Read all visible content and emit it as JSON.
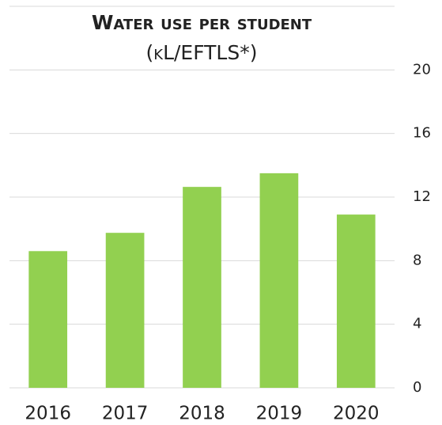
{
  "chart_data": {
    "type": "bar",
    "title": "Water use per student",
    "subtitle": "(kL/EFTLS*)",
    "categories": [
      "2016",
      "2017",
      "2018",
      "2019",
      "2020"
    ],
    "values": [
      8.6,
      9.75,
      12.64,
      13.5,
      10.9
    ],
    "color": "#92d050",
    "ylim": [
      0,
      24
    ],
    "yticks": [
      0,
      4,
      8,
      12,
      16,
      20
    ],
    "grid": true
  }
}
